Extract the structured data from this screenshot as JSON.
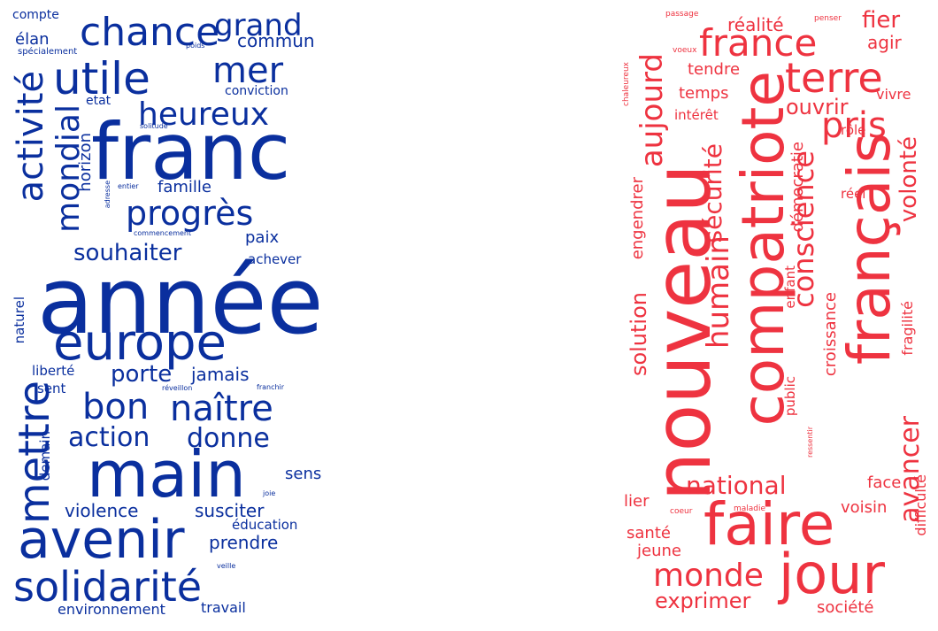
{
  "colors": {
    "blue": "#0a2f9e",
    "red": "#ee3340",
    "background": "#ffffff"
  },
  "blue_cloud": {
    "words": [
      "année",
      "franc",
      "main",
      "europe",
      "avenir",
      "solidarité",
      "mettre",
      "utile",
      "progrès",
      "activité",
      "chance",
      "grand",
      "mer",
      "heureux",
      "mondial",
      "bon",
      "naître",
      "action",
      "donne",
      "souhaiter",
      "porte",
      "jamais",
      "susciter",
      "violence",
      "prendre",
      "commun",
      "famille",
      "horizon",
      "paix",
      "achever",
      "naturel",
      "liberté",
      "sent",
      "demain",
      "sens",
      "éducation",
      "environnement",
      "travail",
      "compte",
      "élan",
      "conviction",
      "etat",
      "spécialement",
      "poids",
      "solitude",
      "entier",
      "adresse",
      "commencement",
      "réveillon",
      "franchir",
      "joie",
      "veille"
    ]
  },
  "red_cloud": {
    "words": [
      "nouveau",
      "compatriote",
      "français",
      "faire",
      "jour",
      "france",
      "terre",
      "pris",
      "aujourd",
      "conscience",
      "humain",
      "sécurité",
      "volonté",
      "national",
      "monde",
      "avancer",
      "solution",
      "engendrer",
      "démocratie",
      "croissance",
      "fragilité",
      "exprimer",
      "santé",
      "jeune",
      "voisin",
      "face",
      "lier",
      "société",
      "difficulté",
      "fier",
      "agir",
      "réalité",
      "tendre",
      "temps",
      "ouvrir",
      "vivre",
      "intérêt",
      "rôle",
      "réel",
      "enfant",
      "public",
      "passage",
      "penser",
      "voeux",
      "chaleureux",
      "ressentir",
      "coeur",
      "maladie"
    ]
  }
}
